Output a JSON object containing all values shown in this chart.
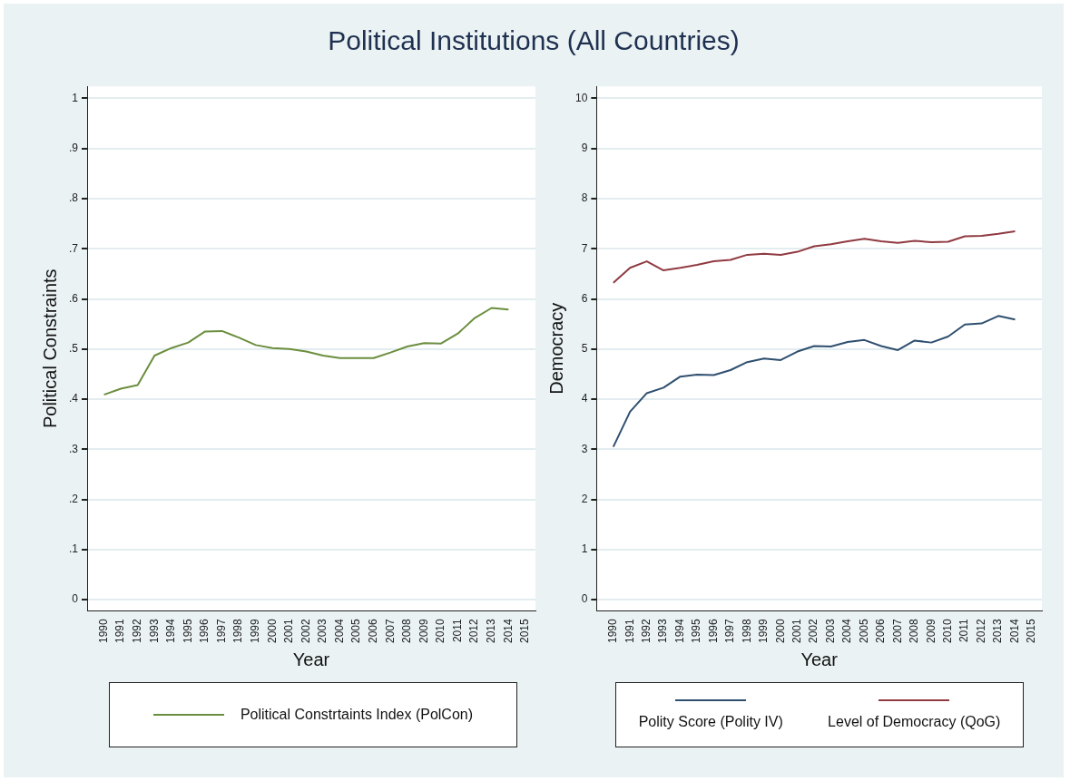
{
  "chart_data": [
    {
      "type": "line",
      "title": "Political Institutions (All Countries)",
      "xlabel": "Year",
      "ylabel": "Political Constraints",
      "x": [
        1990,
        1991,
        1992,
        1993,
        1994,
        1995,
        1996,
        1997,
        1998,
        1999,
        2000,
        2001,
        2002,
        2003,
        2004,
        2005,
        2006,
        2007,
        2008,
        2009,
        2010,
        2011,
        2012,
        2013,
        2014
      ],
      "series": [
        {
          "name": "Political Constrtaints Index (PolCon)",
          "color": "#6b8e3e",
          "values": [
            0.409,
            0.421,
            0.428,
            0.487,
            0.502,
            0.513,
            0.535,
            0.536,
            0.523,
            0.508,
            0.502,
            0.5,
            0.495,
            0.487,
            0.482,
            0.482,
            0.482,
            0.493,
            0.505,
            0.512,
            0.511,
            0.531,
            0.562,
            0.582,
            0.579
          ]
        }
      ],
      "xlim": [
        1989,
        2015.6
      ],
      "xticks": [
        1990,
        1991,
        1992,
        1993,
        1994,
        1995,
        1996,
        1997,
        1998,
        1999,
        2000,
        2001,
        2002,
        2003,
        2004,
        2005,
        2006,
        2007,
        2008,
        2009,
        2010,
        2011,
        2012,
        2013,
        2014,
        2015
      ],
      "ylim": [
        -0.022,
        1.024
      ],
      "yticks": [
        0,
        {
          "value": 0.1,
          "label": ".1"
        },
        {
          "value": 0.2,
          "label": ".2"
        },
        {
          "value": 0.3,
          "label": ".3"
        },
        {
          "value": 0.4,
          "label": ".4"
        },
        {
          "value": 0.5,
          "label": ".5"
        },
        {
          "value": 0.6,
          "label": ".6"
        },
        {
          "value": 0.7,
          "label": ".7"
        },
        {
          "value": 0.8,
          "label": ".8"
        },
        {
          "value": 0.9,
          "label": ".9"
        },
        1
      ],
      "grid": "y",
      "legend": "bottom",
      "marker": "none",
      "line_style": "solid"
    },
    {
      "type": "line",
      "xlabel": "Year",
      "ylabel": "Democracy",
      "x": [
        1990,
        1991,
        1992,
        1993,
        1994,
        1995,
        1996,
        1997,
        1998,
        1999,
        2000,
        2001,
        2002,
        2003,
        2004,
        2005,
        2006,
        2007,
        2008,
        2009,
        2010,
        2011,
        2012,
        2013,
        2014
      ],
      "series": [
        {
          "name": "Polity Score (Polity IV)",
          "color": "#2f4f6f",
          "values": [
            3.05,
            3.75,
            4.12,
            4.23,
            4.45,
            4.49,
            4.48,
            4.58,
            4.74,
            4.81,
            4.78,
            4.95,
            5.06,
            5.05,
            5.14,
            5.18,
            5.06,
            4.98,
            5.17,
            5.13,
            5.25,
            5.49,
            5.51,
            5.66,
            5.59
          ]
        },
        {
          "name": "Level of Democracy (QoG)",
          "color": "#903a42",
          "values": [
            6.32,
            6.62,
            6.75,
            6.57,
            6.62,
            6.68,
            6.75,
            6.78,
            6.88,
            6.9,
            6.88,
            6.94,
            7.05,
            7.09,
            7.15,
            7.2,
            7.15,
            7.12,
            7.16,
            7.13,
            7.14,
            7.25,
            7.26,
            7.3,
            7.35
          ]
        }
      ],
      "xlim": [
        1989,
        2015.6
      ],
      "xticks": [
        1990,
        1991,
        1992,
        1993,
        1994,
        1995,
        1996,
        1997,
        1998,
        1999,
        2000,
        2001,
        2002,
        2003,
        2004,
        2005,
        2006,
        2007,
        2008,
        2009,
        2010,
        2011,
        2012,
        2013,
        2014,
        2015
      ],
      "ylim": [
        -0.22,
        10.24
      ],
      "yticks": [
        0,
        1,
        2,
        3,
        4,
        5,
        6,
        7,
        8,
        9,
        10
      ],
      "grid": "y",
      "legend": "bottom",
      "marker": "none",
      "line_style": "solid"
    }
  ]
}
